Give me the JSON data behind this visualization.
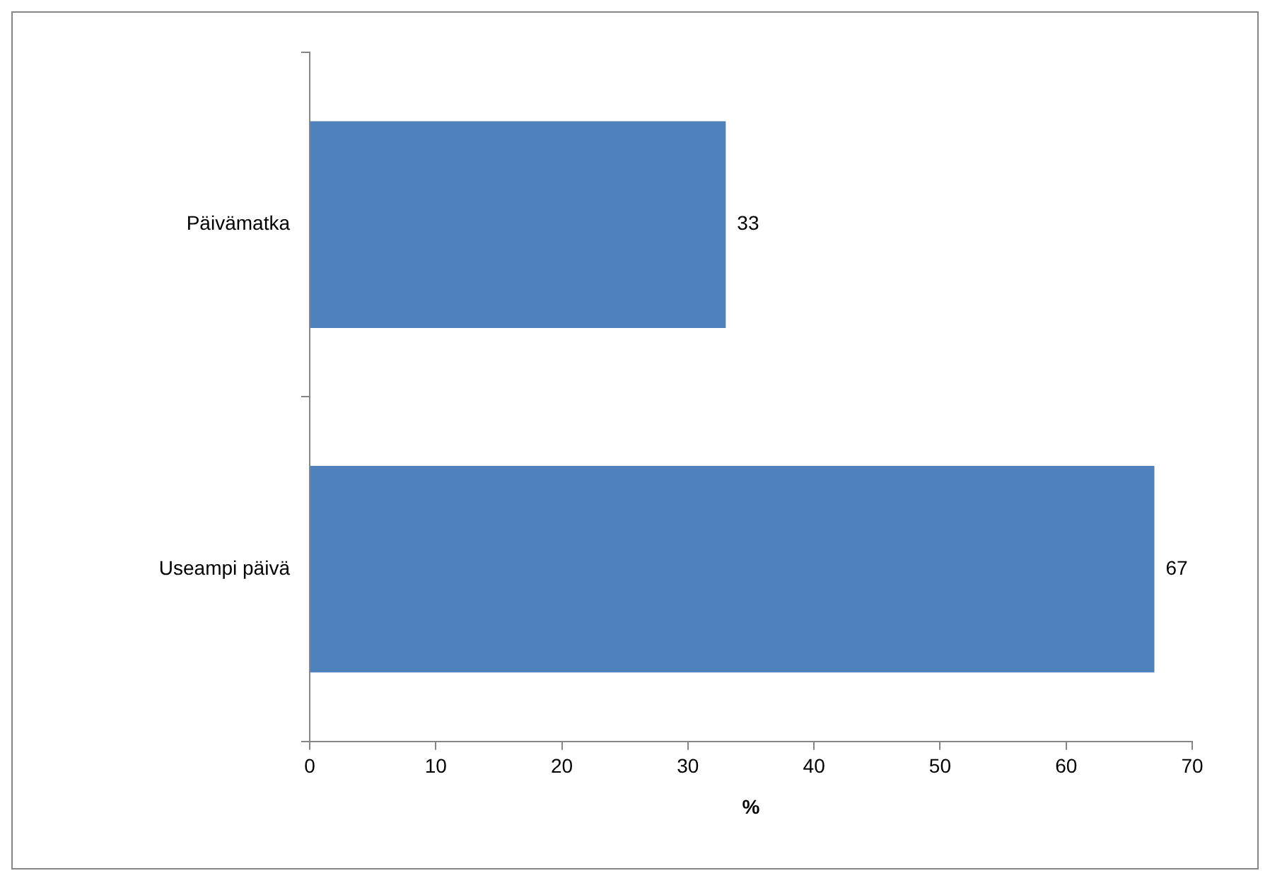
{
  "chart_data": {
    "type": "bar",
    "orientation": "horizontal",
    "categories": [
      "Päivämatka",
      "Useampi päivä"
    ],
    "series": [
      {
        "color": "#4f81bd",
        "values": [
          33,
          67
        ]
      }
    ],
    "xlim": [
      0,
      70
    ],
    "xticks": [
      0,
      10,
      20,
      30,
      40,
      50,
      60,
      70
    ],
    "xlabel": "%",
    "data_labels": true,
    "grid": false,
    "legend": false
  }
}
